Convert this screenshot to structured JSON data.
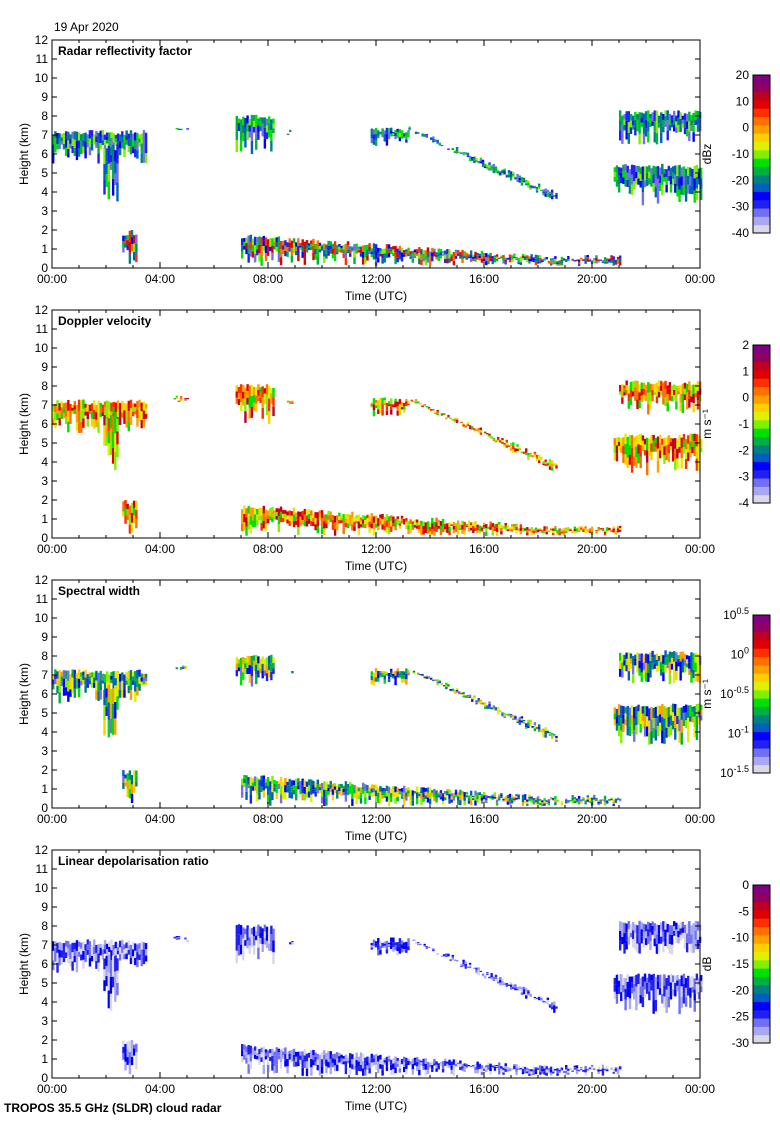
{
  "date": "19 Apr 2020",
  "footer": "TROPOS 35.5 GHz (SLDR) cloud radar",
  "chart_data": [
    {
      "type": "heatmap",
      "title": "Radar reflectivity factor",
      "xlabel": "Time (UTC)",
      "ylabel": "Height (km)",
      "xlim": [
        0,
        24
      ],
      "ylim": [
        0,
        12
      ],
      "xticks": [
        "00:00",
        "04:00",
        "08:00",
        "12:00",
        "16:00",
        "20:00",
        "00:00"
      ],
      "yticks": [
        "0",
        "1",
        "2",
        "3",
        "4",
        "5",
        "6",
        "7",
        "8",
        "9",
        "10",
        "11",
        "12"
      ],
      "colorbar": {
        "label": "dBz",
        "range": [
          -40,
          20
        ],
        "ticks": [
          "20",
          "10",
          "0",
          "-10",
          "-20",
          "-30",
          "-40"
        ]
      },
      "palette": "reflectivity"
    },
    {
      "type": "heatmap",
      "title": "Doppler velocity",
      "xlabel": "Time (UTC)",
      "ylabel": "Height (km)",
      "xlim": [
        0,
        24
      ],
      "ylim": [
        0,
        12
      ],
      "xticks": [
        "00:00",
        "04:00",
        "08:00",
        "12:00",
        "16:00",
        "20:00",
        "00:00"
      ],
      "yticks": [
        "0",
        "1",
        "2",
        "3",
        "4",
        "5",
        "6",
        "7",
        "8",
        "9",
        "10",
        "11",
        "12"
      ],
      "colorbar": {
        "label": "m s⁻¹",
        "range": [
          -4,
          2
        ],
        "ticks": [
          "2",
          "1",
          "0",
          "-1",
          "-2",
          "-3",
          "-4"
        ]
      },
      "palette": "velocity"
    },
    {
      "type": "heatmap",
      "title": "Spectral width",
      "xlabel": "Time (UTC)",
      "ylabel": "Height (km)",
      "xlim": [
        0,
        24
      ],
      "ylim": [
        0,
        12
      ],
      "xticks": [
        "00:00",
        "04:00",
        "08:00",
        "12:00",
        "16:00",
        "20:00",
        "00:00"
      ],
      "yticks": [
        "0",
        "1",
        "2",
        "3",
        "4",
        "5",
        "6",
        "7",
        "8",
        "9",
        "10",
        "11",
        "12"
      ],
      "colorbar": {
        "label": "m s⁻¹",
        "range": [
          -1.5,
          0.5
        ],
        "scale": "log10",
        "ticks": [
          "10^0.5",
          "10^0",
          "10^-0.5",
          "10^-1",
          "10^-1.5"
        ]
      },
      "palette": "width"
    },
    {
      "type": "heatmap",
      "title": "Linear depolarisation ratio",
      "xlabel": "Time (UTC)",
      "ylabel": "Height (km)",
      "xlim": [
        0,
        24
      ],
      "ylim": [
        0,
        12
      ],
      "xticks": [
        "00:00",
        "04:00",
        "08:00",
        "12:00",
        "16:00",
        "20:00",
        "00:00"
      ],
      "yticks": [
        "0",
        "1",
        "2",
        "3",
        "4",
        "5",
        "6",
        "7",
        "8",
        "9",
        "10",
        "11",
        "12"
      ],
      "colorbar": {
        "label": "dB",
        "range": [
          -30,
          0
        ],
        "ticks": [
          "0",
          "-5",
          "-10",
          "-15",
          "-20",
          "-25",
          "-30"
        ]
      },
      "palette": "ldr"
    }
  ],
  "cloud_layers_hours_km": [
    {
      "t": [
        0,
        3.5
      ],
      "base": 5.5,
      "top": 7.3
    },
    {
      "t": [
        1.9,
        2.4
      ],
      "base": 3.5,
      "top": 6.5
    },
    {
      "t": [
        4.5,
        5
      ],
      "base": 7.2,
      "top": 7.5
    },
    {
      "t": [
        6.8,
        8.2
      ],
      "base": 6,
      "top": 8.1
    },
    {
      "t": [
        8.7,
        8.9
      ],
      "base": 7,
      "top": 7.3
    },
    {
      "t": [
        11.8,
        13.2
      ],
      "base": 6.4,
      "top": 7.4
    },
    {
      "t": [
        13.2,
        18.7
      ],
      "base": [
        7.2,
        3.3
      ],
      "top": [
        7.5,
        4
      ]
    },
    {
      "t": [
        21,
        24
      ],
      "base": 6.5,
      "top": 8.3
    },
    {
      "t": [
        20.8,
        24
      ],
      "base": 3.3,
      "top": 5.5
    },
    {
      "t": [
        2.6,
        3.1
      ],
      "base": 0.2,
      "top": 2
    },
    {
      "t": [
        7,
        19
      ],
      "base": 0.1,
      "top": [
        1.8,
        0.6
      ]
    },
    {
      "t": [
        19,
        21
      ],
      "base": 0.1,
      "top": 0.7
    }
  ]
}
